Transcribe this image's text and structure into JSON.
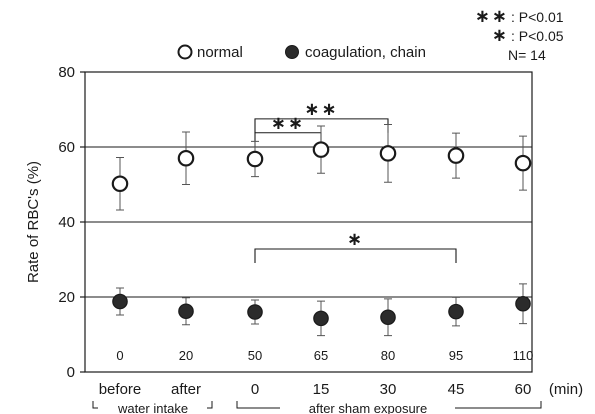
{
  "chart_data": {
    "type": "scatter",
    "ylabel": "Rate of RBC's (%)",
    "ylim": [
      0,
      80
    ],
    "yticks": [
      0,
      20,
      40,
      60,
      80
    ],
    "grid": "horizontal",
    "categories": [
      "before",
      "after",
      "0",
      "15",
      "30",
      "45",
      "60"
    ],
    "x_unit": "(min)",
    "time_labels": [
      "0",
      "20",
      "50",
      "65",
      "80",
      "95",
      "110"
    ],
    "group_labels": {
      "water": "water intake",
      "sham": "after sham exposure"
    },
    "series": [
      {
        "name": "normal",
        "marker": "open-circle",
        "values": [
          50.2,
          57.0,
          56.8,
          59.3,
          58.3,
          57.7,
          55.7
        ],
        "errors": [
          7.0,
          7.0,
          4.7,
          6.3,
          7.7,
          6.0,
          7.2
        ]
      },
      {
        "name": "coagulation, chain",
        "marker": "filled-circle",
        "values": [
          18.8,
          16.2,
          16.0,
          14.3,
          14.6,
          16.1,
          18.2
        ],
        "errors": [
          3.6,
          3.6,
          3.2,
          4.6,
          4.9,
          3.8,
          5.3
        ]
      }
    ],
    "significance": [
      {
        "from": "0",
        "to": "30",
        "y": 67.5,
        "label": "∗∗"
      },
      {
        "from": "0",
        "to": "15",
        "y": 63.8,
        "label": "∗∗"
      },
      {
        "from": "0",
        "to": "45",
        "y": 32.8,
        "label": "∗"
      }
    ],
    "stats_legend": [
      {
        "symbol": "∗∗",
        "text": ": P<0.01"
      },
      {
        "symbol": "∗",
        "text": ": P<0.05"
      },
      {
        "symbol": "",
        "text": "N= 14"
      }
    ]
  },
  "colors": {
    "ink": "#1a1a1a",
    "marker_fill_closed": "#2b2b2b",
    "marker_fill_open": "#ffffff",
    "grid": "#1a1a1a",
    "error_bar": "#555555"
  }
}
